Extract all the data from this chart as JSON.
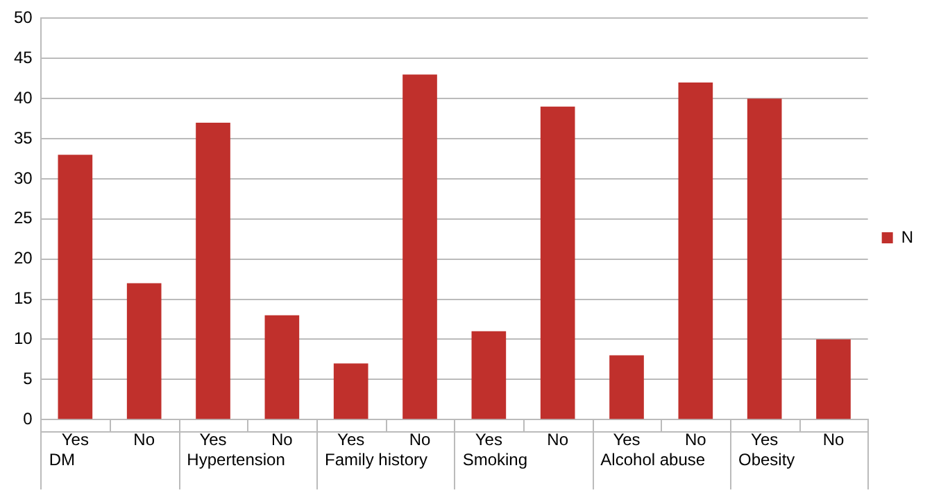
{
  "chart_data": {
    "type": "bar",
    "categories": [
      "Yes",
      "No",
      "Yes",
      "No",
      "Yes",
      "No",
      "Yes",
      "No",
      "Yes",
      "No",
      "Yes",
      "No"
    ],
    "series": [
      {
        "name": "N",
        "color": "#c0302c",
        "values": [
          33,
          17,
          37,
          13,
          7,
          43,
          11,
          39,
          8,
          42,
          40,
          10
        ]
      }
    ],
    "annotations": [
      "DM",
      "Hypertension",
      "Family history",
      "Smoking",
      "Alcohol abuse",
      "Obesity"
    ],
    "ylim": [
      0,
      50
    ],
    "yticks": [
      0,
      5,
      10,
      15,
      20,
      25,
      30,
      35,
      40,
      45,
      50
    ],
    "grid": "y",
    "legend": "right"
  }
}
